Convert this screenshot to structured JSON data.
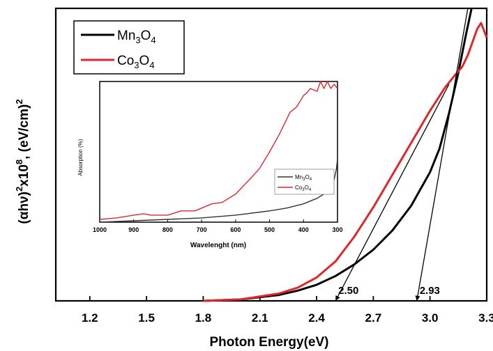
{
  "chart_data": [
    {
      "type": "line",
      "xlabel": "Photon Energy(eV)",
      "ylabel": {
        "parts": [
          "(αhν)",
          "2",
          "x10",
          "8",
          ", (eV/cm)",
          "2"
        ]
      },
      "xlim": [
        1.02,
        3.3
      ],
      "ylim": [
        0,
        1
      ],
      "xticks": [
        1.2,
        1.5,
        1.8,
        2.1,
        2.4,
        2.7,
        3.0,
        3.3
      ],
      "xtick_labels": [
        "1.2",
        "1.5",
        "1.8",
        "2.1",
        "2.4",
        "2.7",
        "3.0",
        "3.3"
      ],
      "yticks_shown": false,
      "legend_position": "top-left",
      "series": [
        {
          "name": "Mn3O4",
          "legend": {
            "base": "Mn",
            "s1": "3",
            "mid": "O",
            "s2": "4"
          },
          "color": "#000000",
          "x": [
            1.8,
            2.0,
            2.2,
            2.3,
            2.4,
            2.5,
            2.6,
            2.7,
            2.8,
            2.9,
            3.0,
            3.05,
            3.1,
            3.15,
            3.19,
            3.22
          ],
          "y": [
            0.0,
            0.005,
            0.02,
            0.035,
            0.055,
            0.085,
            0.125,
            0.175,
            0.24,
            0.325,
            0.44,
            0.52,
            0.64,
            0.78,
            0.91,
            1.0
          ]
        },
        {
          "name": "Co3O4",
          "legend": {
            "base": "Co",
            "s1": "3",
            "mid": "O",
            "s2": "4"
          },
          "color": "#e0262b",
          "x": [
            1.8,
            2.0,
            2.2,
            2.3,
            2.4,
            2.5,
            2.6,
            2.7,
            2.8,
            2.9,
            3.0,
            3.08,
            3.13,
            3.17,
            3.2,
            3.25,
            3.27,
            3.3
          ],
          "y": [
            0.0,
            0.005,
            0.025,
            0.045,
            0.08,
            0.135,
            0.22,
            0.32,
            0.43,
            0.54,
            0.65,
            0.73,
            0.77,
            0.8,
            0.84,
            0.93,
            0.95,
            0.9
          ]
        }
      ],
      "tangents": [
        {
          "label": "2.50",
          "x": [
            2.5,
            3.1
          ],
          "y": [
            0.0,
            0.74
          ]
        },
        {
          "label": "2.93",
          "x": [
            2.93,
            3.2
          ],
          "y": [
            0.0,
            1.0
          ]
        }
      ]
    },
    {
      "type": "line",
      "xlabel": "Wavelenght (nm)",
      "ylabel": "Absorption (%)",
      "xlim": [
        1000,
        300
      ],
      "ylim": [
        0,
        1
      ],
      "xticks": [
        1000,
        900,
        800,
        700,
        600,
        500,
        400,
        300
      ],
      "xtick_labels": [
        "1000",
        "900",
        "800",
        "700",
        "600",
        "500",
        "400",
        "300"
      ],
      "legend_position": "bottom-right",
      "series": [
        {
          "name": "Mn3O4",
          "legend": {
            "base": "Mn",
            "s1": "3",
            "mid": "O",
            "s2": "4"
          },
          "color": "#333333",
          "x": [
            1000,
            900,
            800,
            700,
            600,
            500,
            450,
            400,
            360,
            340,
            320,
            310,
            303,
            300
          ],
          "y": [
            0.0,
            0.01,
            0.02,
            0.03,
            0.05,
            0.08,
            0.1,
            0.13,
            0.17,
            0.2,
            0.24,
            0.3,
            0.38,
            0.45
          ]
        },
        {
          "name": "Co3O4",
          "legend": {
            "base": "Co",
            "s1": "3",
            "mid": "O",
            "s2": "4"
          },
          "color": "#e0262b",
          "x": [
            1000,
            950,
            900,
            870,
            850,
            800,
            760,
            720,
            700,
            670,
            640,
            600,
            560,
            530,
            500,
            470,
            440,
            420,
            400,
            390,
            380,
            360,
            350,
            340,
            330,
            320,
            310,
            300
          ],
          "y": [
            0.02,
            0.03,
            0.05,
            0.06,
            0.05,
            0.05,
            0.08,
            0.08,
            0.1,
            0.13,
            0.14,
            0.2,
            0.3,
            0.38,
            0.5,
            0.63,
            0.78,
            0.82,
            0.9,
            0.92,
            0.95,
            0.93,
            1.0,
            0.95,
            1.0,
            0.95,
            0.98,
            0.95
          ]
        }
      ]
    }
  ]
}
